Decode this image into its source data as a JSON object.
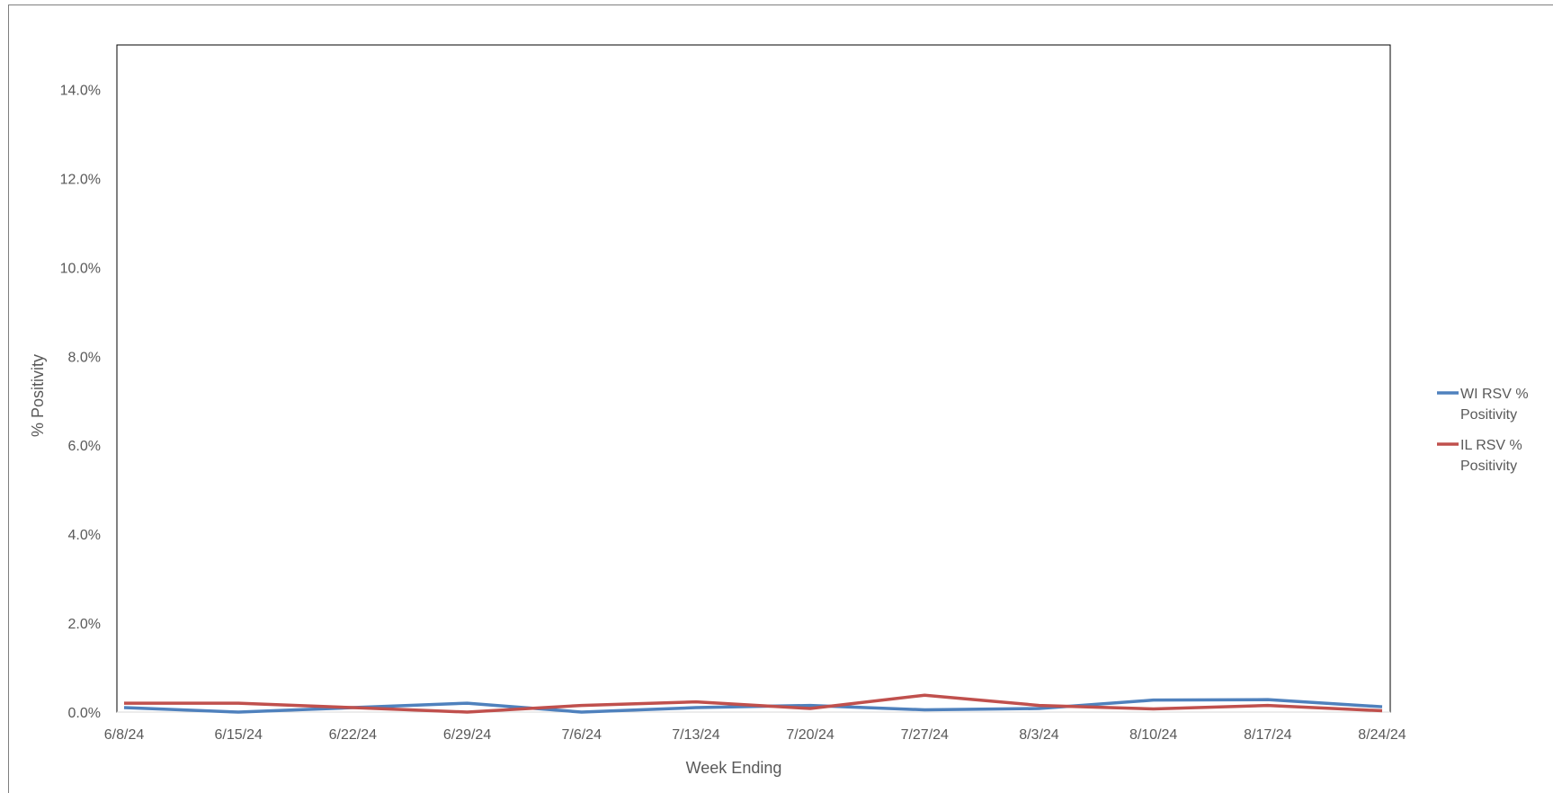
{
  "chart_data": {
    "type": "line",
    "title": "",
    "xlabel": "Week Ending",
    "ylabel": "% Positivity",
    "categories": [
      "6/8/24",
      "6/15/24",
      "6/22/24",
      "6/29/24",
      "7/6/24",
      "7/13/24",
      "7/20/24",
      "7/27/24",
      "8/3/24",
      "8/10/24",
      "8/17/24",
      "8/24/24"
    ],
    "y_ticks": [
      0,
      2,
      4,
      6,
      8,
      10,
      12,
      14
    ],
    "y_tick_labels": [
      "0.0%",
      "2.0%",
      "4.0%",
      "6.0%",
      "8.0%",
      "10.0%",
      "12.0%",
      "14.0%"
    ],
    "ylim": [
      0,
      15
    ],
    "grid": false,
    "legend_position": "right",
    "series": [
      {
        "name_lines": [
          "WI RSV %",
          "Positivity"
        ],
        "color": "#4f81bd",
        "values": [
          0.1,
          0.0,
          0.1,
          0.2,
          0.0,
          0.1,
          0.15,
          0.05,
          0.08,
          0.27,
          0.28,
          0.12
        ]
      },
      {
        "name_lines": [
          "IL RSV %",
          "Positivity"
        ],
        "color": "#c0504d",
        "values": [
          0.2,
          0.2,
          0.1,
          0.0,
          0.15,
          0.23,
          0.08,
          0.38,
          0.15,
          0.07,
          0.15,
          0.03
        ]
      }
    ]
  }
}
